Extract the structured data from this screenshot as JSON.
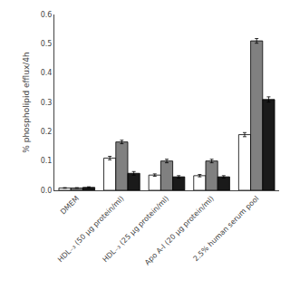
{
  "chart_data": {
    "type": "bar",
    "categories": [
      "DMEM",
      "HDL₋₃ (50 μg protein/ml)",
      "HDL₋₃ (25 μg protein/ml)",
      "Apo A-I (20 μg protein/ml)",
      "2.5% human serum pool"
    ],
    "ylabel": "% phospholipid efflux/4h",
    "series": [
      {
        "color": "#ffffff",
        "values": [
          0.008,
          0.11,
          0.052,
          0.05,
          0.19
        ],
        "errors": [
          0.001,
          0.006,
          0.004,
          0.004,
          0.007
        ]
      },
      {
        "color": "#808080",
        "values": [
          0.008,
          0.165,
          0.1,
          0.1,
          0.51
        ],
        "errors": [
          0.001,
          0.006,
          0.006,
          0.006,
          0.008
        ]
      },
      {
        "color": "#1a1a1a",
        "values": [
          0.01,
          0.058,
          0.046,
          0.046,
          0.31
        ],
        "errors": [
          0.002,
          0.006,
          0.004,
          0.004,
          0.009
        ]
      }
    ],
    "ylim": [
      0,
      0.6
    ],
    "yticks": [
      {
        "value": 0,
        "label": "0.0"
      },
      0.1,
      0.2,
      0.3,
      0.4,
      0.5,
      0.6
    ],
    "grid": false
  }
}
